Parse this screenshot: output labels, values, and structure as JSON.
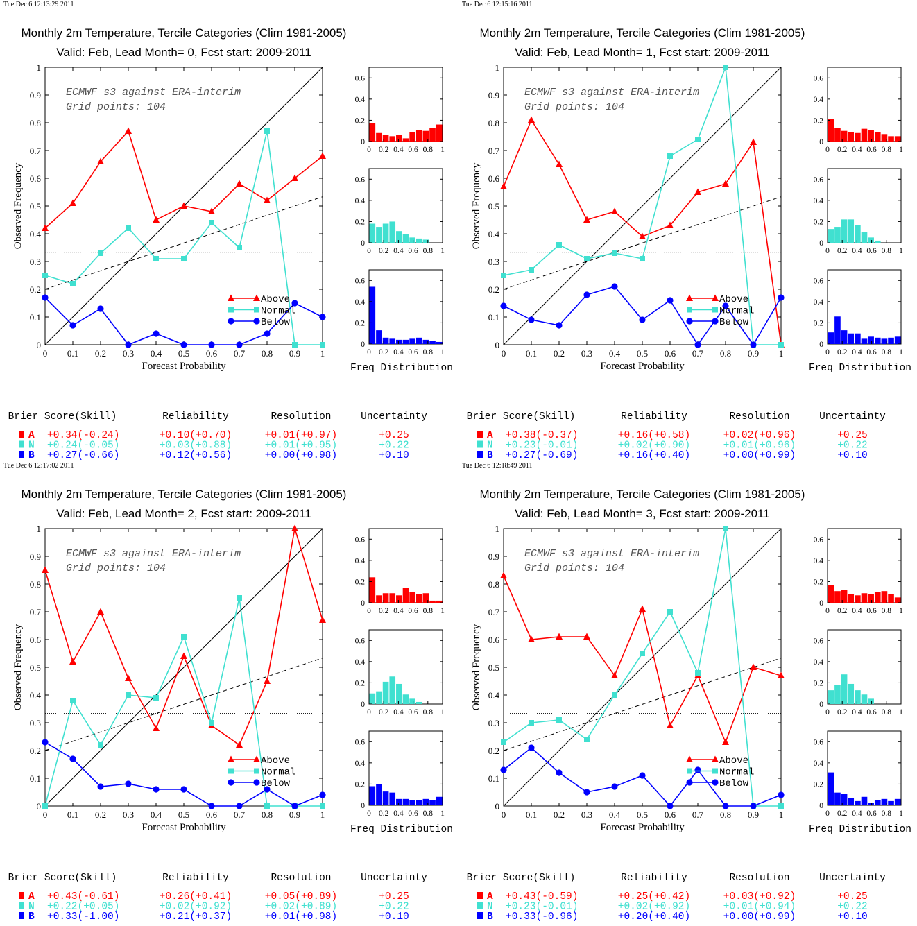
{
  "colors": {
    "above": "#ff0000",
    "normal": "#40e0d0",
    "below": "#0000ff",
    "axis": "#000000"
  },
  "common": {
    "title": "Monthly 2m Temperature, Tercile Categories (Clim 1981-2005)",
    "xlabel": "Forecast Probability",
    "ylabel": "Observed Frequency",
    "freq_label": "Freq Distribution",
    "model_text": "ECMWF s3 against ERA-interim",
    "grid_text": "Grid points:  104",
    "legend": [
      "Above",
      "Normal",
      "Below"
    ],
    "x_ticks": [
      "0",
      "0.1",
      "0.2",
      "0.3",
      "0.4",
      "0.5",
      "0.6",
      "0.7",
      "0.8",
      "0.9",
      "1"
    ],
    "y_ticks": [
      "0",
      "0.1",
      "0.2",
      "0.3",
      "0.4",
      "0.5",
      "0.6",
      "0.7",
      "0.8",
      "0.9",
      "1"
    ],
    "hist_x_ticks": [
      "0",
      "0.2",
      "0.4",
      "0.6",
      "0.8",
      "1"
    ],
    "hist_y_ticks": [
      "0",
      "0.2",
      "0.4",
      "0.6"
    ],
    "score_headers": [
      "Brier Score(Skill)",
      "Reliability",
      "Resolution",
      "Uncertainty"
    ],
    "score_letters": [
      "A",
      "N",
      "B"
    ]
  },
  "chart_data": [
    {
      "type": "line",
      "timestamp": "Tue Dec  6 12:13:29 2011",
      "subtitle": "Valid: Feb, Lead Month= 0, Fcst start: 2009-2011",
      "x": [
        0,
        0.1,
        0.2,
        0.3,
        0.4,
        0.5,
        0.6,
        0.7,
        0.8,
        0.9,
        1
      ],
      "xlim": [
        0,
        1
      ],
      "ylim": [
        0,
        1
      ],
      "series": [
        {
          "name": "Above",
          "values": [
            0.42,
            0.51,
            0.66,
            0.77,
            0.45,
            0.5,
            0.48,
            0.58,
            0.52,
            0.6,
            0.68
          ]
        },
        {
          "name": "Normal",
          "values": [
            0.25,
            0.22,
            0.33,
            0.42,
            0.31,
            0.31,
            0.44,
            0.35,
            0.77,
            0.0,
            0.0
          ]
        },
        {
          "name": "Below",
          "values": [
            0.17,
            0.07,
            0.13,
            0.0,
            0.04,
            0.0,
            0.0,
            0.0,
            0.04,
            0.15,
            0.1
          ]
        }
      ],
      "hist": {
        "above": [
          0.17,
          0.08,
          0.06,
          0.05,
          0.06,
          0.03,
          0.09,
          0.11,
          0.1,
          0.13,
          0.16
        ],
        "normal": [
          0.18,
          0.15,
          0.18,
          0.2,
          0.11,
          0.08,
          0.05,
          0.04,
          0.03,
          0.0,
          0.0
        ],
        "below": [
          0.54,
          0.13,
          0.06,
          0.05,
          0.04,
          0.04,
          0.05,
          0.06,
          0.04,
          0.03,
          0.02
        ]
      },
      "scores": [
        [
          "+0.34(-0.24)",
          "+0.10(+0.70)",
          "+0.01(+0.97)",
          "+0.25"
        ],
        [
          "+0.24(-0.05)",
          "+0.03(+0.88)",
          "+0.01(+0.95)",
          "+0.22"
        ],
        [
          "+0.27(-0.66)",
          "+0.12(+0.56)",
          "+0.00(+0.98)",
          "+0.10"
        ]
      ]
    },
    {
      "type": "line",
      "timestamp": "Tue Dec  6 12:15:16 2011",
      "subtitle": "Valid: Feb, Lead Month= 1, Fcst start: 2009-2011",
      "x": [
        0,
        0.1,
        0.2,
        0.3,
        0.4,
        0.5,
        0.6,
        0.7,
        0.8,
        0.9,
        1
      ],
      "xlim": [
        0,
        1
      ],
      "ylim": [
        0,
        1
      ],
      "series": [
        {
          "name": "Above",
          "values": [
            0.57,
            0.81,
            0.65,
            0.45,
            0.48,
            0.39,
            0.43,
            0.55,
            0.58,
            0.73,
            0.0
          ]
        },
        {
          "name": "Normal",
          "values": [
            0.25,
            0.27,
            0.36,
            0.31,
            0.33,
            0.31,
            0.68,
            0.74,
            1.0,
            0.0,
            0.0
          ]
        },
        {
          "name": "Below",
          "values": [
            0.14,
            0.09,
            0.07,
            0.18,
            0.21,
            0.09,
            0.16,
            0.0,
            0.14,
            0.0,
            0.17
          ]
        }
      ],
      "hist": {
        "above": [
          0.21,
          0.13,
          0.1,
          0.09,
          0.08,
          0.12,
          0.11,
          0.09,
          0.07,
          0.05,
          0.05
        ],
        "normal": [
          0.13,
          0.15,
          0.22,
          0.22,
          0.17,
          0.1,
          0.05,
          0.02,
          0.0,
          0.0,
          0.0
        ],
        "below": [
          0.11,
          0.26,
          0.13,
          0.1,
          0.1,
          0.05,
          0.07,
          0.06,
          0.05,
          0.06,
          0.07
        ]
      },
      "scores": [
        [
          "+0.38(-0.37)",
          "+0.16(+0.58)",
          "+0.02(+0.96)",
          "+0.25"
        ],
        [
          "+0.23(-0.01)",
          "+0.02(+0.90)",
          "+0.01(+0.96)",
          "+0.22"
        ],
        [
          "+0.27(-0.69)",
          "+0.16(+0.40)",
          "+0.00(+0.99)",
          "+0.10"
        ]
      ]
    },
    {
      "type": "line",
      "timestamp": "Tue Dec  6 12:17:02 2011",
      "subtitle": "Valid: Feb, Lead Month= 2, Fcst start: 2009-2011",
      "x": [
        0,
        0.1,
        0.2,
        0.3,
        0.4,
        0.5,
        0.6,
        0.7,
        0.8,
        0.9,
        1
      ],
      "xlim": [
        0,
        1
      ],
      "ylim": [
        0,
        1
      ],
      "series": [
        {
          "name": "Above",
          "values": [
            0.85,
            0.52,
            0.7,
            0.46,
            0.28,
            0.54,
            0.29,
            0.22,
            0.45,
            1.0,
            0.67
          ]
        },
        {
          "name": "Normal",
          "values": [
            0.0,
            0.38,
            0.22,
            0.4,
            0.39,
            0.61,
            0.3,
            0.75,
            0.0,
            0.0,
            0.0
          ]
        },
        {
          "name": "Below",
          "values": [
            0.23,
            0.17,
            0.07,
            0.08,
            0.06,
            0.06,
            0.0,
            0.0,
            0.06,
            0.0,
            0.04
          ]
        }
      ],
      "hist": {
        "above": [
          0.24,
          0.07,
          0.09,
          0.09,
          0.07,
          0.14,
          0.1,
          0.08,
          0.09,
          0.02,
          0.02
        ],
        "normal": [
          0.1,
          0.12,
          0.21,
          0.26,
          0.19,
          0.09,
          0.05,
          0.02,
          0.0,
          0.0,
          0.0
        ],
        "below": [
          0.18,
          0.2,
          0.13,
          0.12,
          0.06,
          0.06,
          0.05,
          0.05,
          0.06,
          0.05,
          0.08
        ]
      },
      "scores": [
        [
          "+0.43(-0.61)",
          "+0.26(+0.41)",
          "+0.05(+0.89)",
          "+0.25"
        ],
        [
          "+0.22(+0.05)",
          "+0.02(+0.92)",
          "+0.02(+0.89)",
          "+0.22"
        ],
        [
          "+0.33(-1.00)",
          "+0.21(+0.37)",
          "+0.01(+0.98)",
          "+0.10"
        ]
      ]
    },
    {
      "type": "line",
      "timestamp": "Tue Dec  6 12:18:49 2011",
      "subtitle": "Valid: Feb, Lead Month= 3, Fcst start: 2009-2011",
      "x": [
        0,
        0.1,
        0.2,
        0.3,
        0.4,
        0.5,
        0.6,
        0.7,
        0.8,
        0.9,
        1
      ],
      "xlim": [
        0,
        1
      ],
      "ylim": [
        0,
        1
      ],
      "series": [
        {
          "name": "Above",
          "values": [
            0.83,
            0.6,
            0.61,
            0.61,
            0.47,
            0.71,
            0.29,
            0.47,
            0.23,
            0.5,
            0.47
          ]
        },
        {
          "name": "Normal",
          "values": [
            0.23,
            0.3,
            0.31,
            0.24,
            0.4,
            0.55,
            0.7,
            0.48,
            1.0,
            0.0,
            0.0
          ]
        },
        {
          "name": "Below",
          "values": [
            0.13,
            0.21,
            0.12,
            0.05,
            0.07,
            0.11,
            0.0,
            0.13,
            0.0,
            0.0,
            0.04
          ]
        }
      ],
      "hist": {
        "above": [
          0.17,
          0.11,
          0.12,
          0.08,
          0.07,
          0.09,
          0.08,
          0.1,
          0.11,
          0.08,
          0.05
        ],
        "normal": [
          0.13,
          0.18,
          0.28,
          0.19,
          0.13,
          0.09,
          0.05,
          0.0,
          0.0,
          0.0,
          0.0
        ],
        "below": [
          0.31,
          0.12,
          0.11,
          0.07,
          0.04,
          0.08,
          0.02,
          0.05,
          0.06,
          0.04,
          0.06
        ]
      },
      "scores": [
        [
          "+0.43(-0.59)",
          "+0.25(+0.42)",
          "+0.03(+0.92)",
          "+0.25"
        ],
        [
          "+0.23(-0.01)",
          "+0.02(+0.92)",
          "+0.01(+0.94)",
          "+0.22"
        ],
        [
          "+0.33(-0.96)",
          "+0.20(+0.40)",
          "+0.00(+0.99)",
          "+0.10"
        ]
      ]
    }
  ]
}
